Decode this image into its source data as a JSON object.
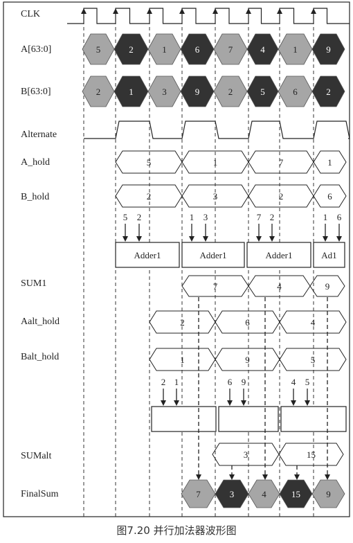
{
  "caption": "图7.20 并行加法器波形图",
  "signals": {
    "clk": "CLK",
    "a": "A[63:0]",
    "b": "B[63:0]",
    "alternate": "Alternate",
    "a_hold": "A_hold",
    "b_hold": "B_hold",
    "sum1": "SUM1",
    "aalt_hold": "Aalt_hold",
    "balt_hold": "Balt_hold",
    "sumalt": "SUMalt",
    "finalsum": "FinalSum"
  },
  "a_values": [
    "5",
    "2",
    "1",
    "6",
    "7",
    "4",
    "1",
    "9"
  ],
  "b_values": [
    "2",
    "1",
    "3",
    "9",
    "2",
    "5",
    "6",
    "2"
  ],
  "a_hold_values": [
    "5",
    "1",
    "7",
    "1"
  ],
  "b_hold_values": [
    "2",
    "3",
    "2",
    "6"
  ],
  "adder_inputs": [
    [
      "5",
      "2"
    ],
    [
      "1",
      "3"
    ],
    [
      "7",
      "2"
    ],
    [
      "1",
      "6"
    ]
  ],
  "adder_labels": [
    "Adder1",
    "Adder1",
    "Adder1",
    "Ad1"
  ],
  "sum1_values": [
    "7",
    "4",
    "9"
  ],
  "aalt_hold_values": [
    "2",
    "6",
    "4"
  ],
  "balt_hold_values": [
    "1",
    "9",
    "5"
  ],
  "alt_adder_inputs": [
    [
      "2",
      "1"
    ],
    [
      "6",
      "9"
    ],
    [
      "4",
      "5"
    ]
  ],
  "sumalt_values": [
    "3",
    "15"
  ],
  "finalsum_values": [
    "7",
    "3",
    "4",
    "15",
    "9"
  ],
  "colors": {
    "light": "#a6a6a6",
    "dark": "#333333",
    "line": "#222222"
  }
}
